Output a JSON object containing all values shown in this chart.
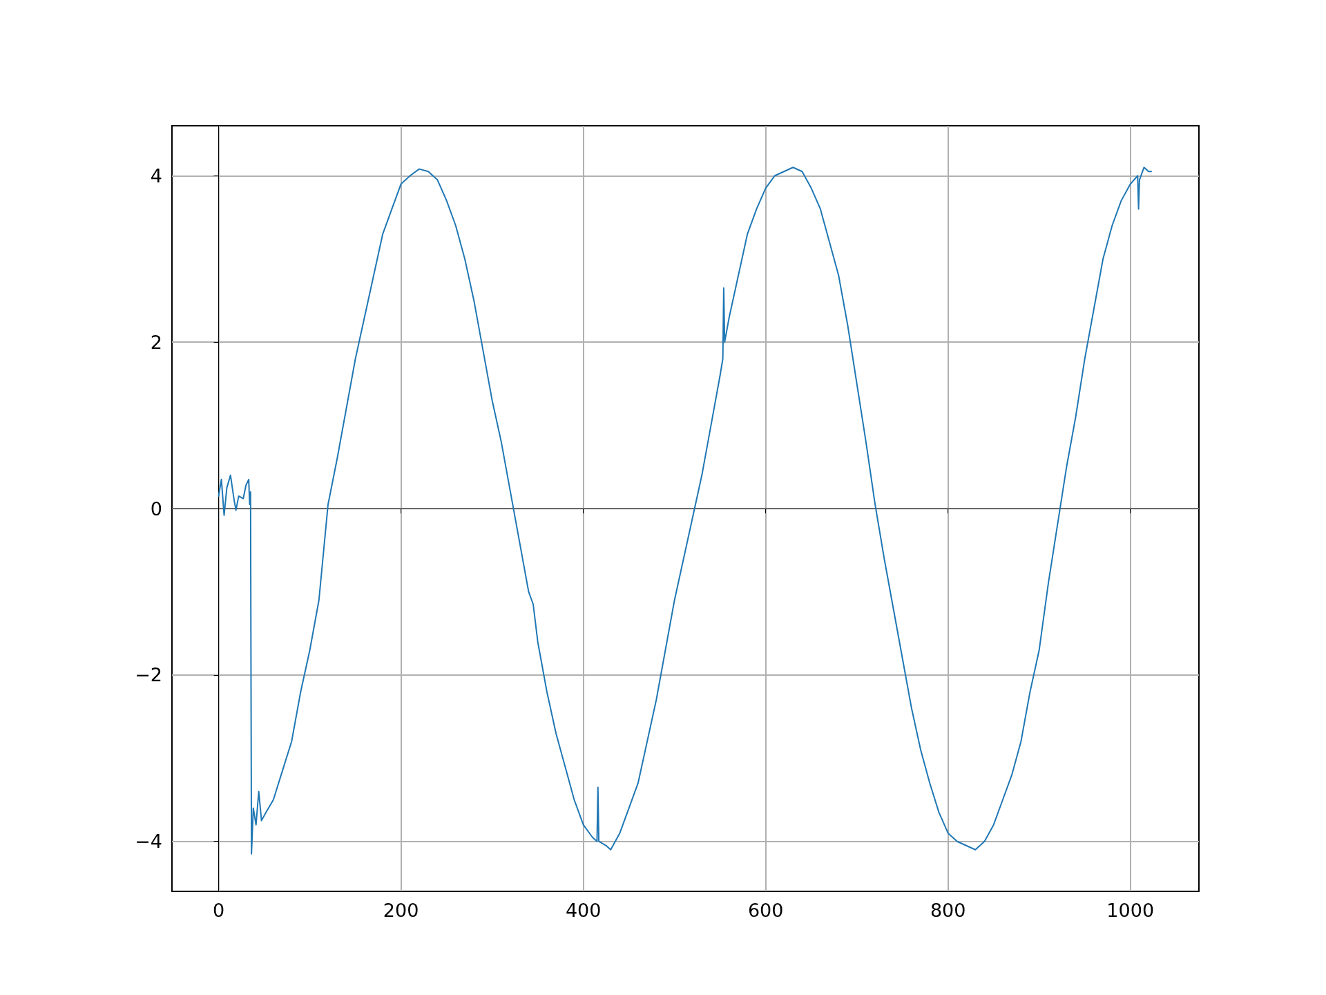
{
  "chart_data": {
    "type": "line",
    "grid": true,
    "marker": "none",
    "line_style": "solid",
    "xlim": [
      -51.2,
      1075.2
    ],
    "xticks": [
      0,
      200,
      400,
      600,
      800,
      1000
    ],
    "ylim": [
      -4.6,
      4.6
    ],
    "yticks": [
      {
        "value": -4,
        "label": "−4"
      },
      {
        "value": -2,
        "label": "−2"
      },
      0,
      2,
      4
    ],
    "series": [
      {
        "color": "#1f77b4",
        "x": [
          0,
          3,
          6,
          9,
          13,
          17,
          19,
          22,
          27,
          30,
          33,
          34,
          35,
          36,
          38,
          41,
          44,
          47,
          52,
          60,
          70,
          80,
          90,
          100,
          110,
          120,
          130,
          140,
          150,
          160,
          170,
          180,
          190,
          200,
          210,
          220,
          230,
          240,
          250,
          260,
          270,
          280,
          290,
          300,
          310,
          320,
          330,
          340,
          345,
          350,
          360,
          370,
          380,
          390,
          400,
          410,
          415,
          416,
          417,
          425,
          430,
          440,
          450,
          460,
          470,
          480,
          490,
          500,
          510,
          520,
          530,
          540,
          550,
          553,
          554,
          555,
          560,
          570,
          580,
          590,
          600,
          610,
          620,
          630,
          640,
          650,
          660,
          670,
          680,
          690,
          700,
          710,
          720,
          730,
          740,
          750,
          760,
          770,
          780,
          790,
          800,
          810,
          820,
          830,
          840,
          850,
          860,
          870,
          880,
          890,
          900,
          910,
          920,
          930,
          940,
          950,
          960,
          970,
          980,
          990,
          1000,
          1008,
          1009,
          1010,
          1015,
          1020,
          1023
        ],
        "values": [
          0.15,
          0.35,
          -0.08,
          0.25,
          0.4,
          0.1,
          -0.02,
          0.15,
          0.12,
          0.28,
          0.35,
          0.05,
          0.2,
          -4.15,
          -3.6,
          -3.8,
          -3.4,
          -3.75,
          -3.65,
          -3.5,
          -3.15,
          -2.8,
          -2.2,
          -1.7,
          -1.1,
          0.05,
          0.6,
          1.2,
          1.8,
          2.3,
          2.8,
          3.3,
          3.6,
          3.9,
          4.0,
          4.08,
          4.05,
          3.95,
          3.7,
          3.4,
          3.0,
          2.5,
          1.9,
          1.3,
          0.8,
          0.2,
          -0.4,
          -1.0,
          -1.15,
          -1.6,
          -2.2,
          -2.7,
          -3.1,
          -3.5,
          -3.8,
          -3.95,
          -4.0,
          -3.35,
          -4.0,
          -4.05,
          -4.1,
          -3.9,
          -3.6,
          -3.3,
          -2.8,
          -2.3,
          -1.7,
          -1.1,
          -0.6,
          -0.1,
          0.4,
          1.0,
          1.6,
          1.8,
          2.65,
          2.0,
          2.3,
          2.8,
          3.3,
          3.6,
          3.85,
          4.0,
          4.05,
          4.1,
          4.05,
          3.85,
          3.6,
          3.2,
          2.8,
          2.2,
          1.5,
          0.8,
          0.05,
          -0.6,
          -1.2,
          -1.8,
          -2.4,
          -2.9,
          -3.3,
          -3.65,
          -3.9,
          -4.0,
          -4.05,
          -4.1,
          -4.0,
          -3.8,
          -3.5,
          -3.2,
          -2.8,
          -2.2,
          -1.7,
          -0.9,
          -0.2,
          0.5,
          1.1,
          1.8,
          2.4,
          3.0,
          3.4,
          3.7,
          3.9,
          4.0,
          3.6,
          3.95,
          4.1,
          4.05,
          4.05
        ]
      }
    ]
  }
}
